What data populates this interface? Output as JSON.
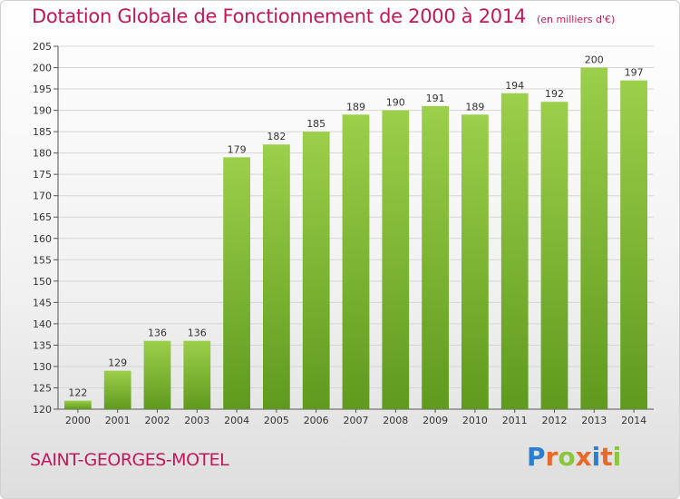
{
  "header": {
    "title": "Dotation Globale de Fonctionnement de 2000 à 2014",
    "subtitle": "(en milliers d'€)"
  },
  "footer": {
    "town": "SAINT-GEORGES-MOTEL",
    "logo": "Proxiti"
  },
  "colors": {
    "bar": "#8cc63f",
    "bar_dark": "#5f9a1e",
    "accent": "#c2185b"
  },
  "chart_data": {
    "type": "bar",
    "title": "Dotation Globale de Fonctionnement de 2000 à 2014",
    "subtitle": "(en milliers d'€)",
    "categories": [
      "2000",
      "2001",
      "2002",
      "2003",
      "2004",
      "2005",
      "2006",
      "2007",
      "2008",
      "2009",
      "2010",
      "2011",
      "2012",
      "2013",
      "2014"
    ],
    "values": [
      122,
      129,
      136,
      136,
      179,
      182,
      185,
      189,
      190,
      191,
      189,
      194,
      192,
      200,
      197
    ],
    "ylim": [
      120,
      205
    ],
    "yticks": [
      120,
      125,
      130,
      135,
      140,
      145,
      150,
      155,
      160,
      165,
      170,
      175,
      180,
      185,
      190,
      195,
      200,
      205
    ],
    "grid": true
  }
}
